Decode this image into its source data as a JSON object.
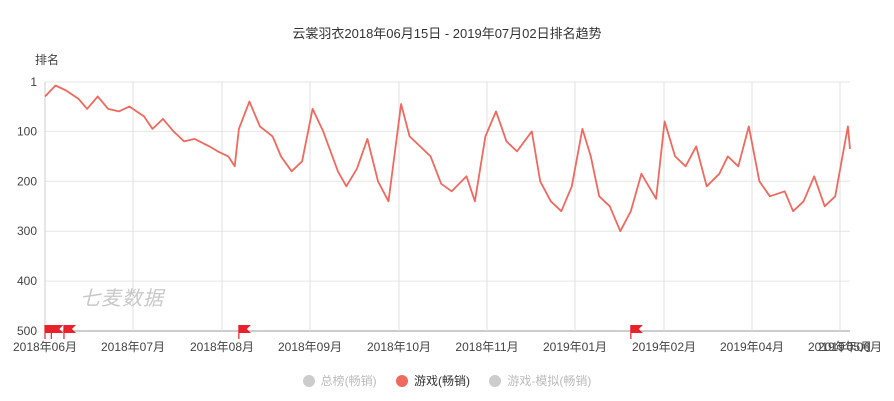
{
  "chart_data": {
    "type": "line",
    "title": "云裳羽衣2018年06月15日 - 2019年07月02日排名趋势",
    "ylabel": "排名",
    "ylim": [
      1,
      500
    ],
    "y_inverted": true,
    "y_ticks": [
      "1",
      "100",
      "200",
      "300",
      "400",
      "500"
    ],
    "x_ticks": [
      "2018年06月",
      "2018年07月",
      "2018年08月",
      "2018年09月",
      "2018年10月",
      "2018年11月",
      "2019年01月",
      "2019年02月",
      "2019年04月",
      "2019年05月",
      "2019年06月"
    ],
    "grid": true,
    "legend_position": "bottom",
    "series": [
      {
        "name": "游戏(畅销)",
        "color": "#f0695e",
        "x": [
          "2018-06-15",
          "2018-06-20",
          "2018-06-25",
          "2018-07-01",
          "2018-07-05",
          "2018-07-10",
          "2018-07-15",
          "2018-07-20",
          "2018-07-25",
          "2018-08-01",
          "2018-08-05",
          "2018-08-10",
          "2018-08-15",
          "2018-08-20",
          "2018-08-25",
          "2018-09-01",
          "2018-09-05",
          "2018-09-10",
          "2018-09-13",
          "2018-09-15",
          "2018-09-20",
          "2018-09-25",
          "2018-10-01",
          "2018-10-05",
          "2018-10-10",
          "2018-10-15",
          "2018-10-20",
          "2018-10-25",
          "2018-11-01",
          "2018-11-05",
          "2018-11-10",
          "2018-11-15",
          "2018-11-20",
          "2018-11-25",
          "2018-12-01",
          "2018-12-05",
          "2018-12-10",
          "2018-12-15",
          "2018-12-20",
          "2018-12-25",
          "2019-01-01",
          "2019-01-05",
          "2019-01-10",
          "2019-01-15",
          "2019-01-20",
          "2019-01-25",
          "2019-02-01",
          "2019-02-05",
          "2019-02-10",
          "2019-02-15",
          "2019-02-20",
          "2019-02-25",
          "2019-03-01",
          "2019-03-05",
          "2019-03-10",
          "2019-03-15",
          "2019-03-20",
          "2019-03-25",
          "2019-04-01",
          "2019-04-05",
          "2019-04-10",
          "2019-04-15",
          "2019-04-20",
          "2019-04-25",
          "2019-05-01",
          "2019-05-05",
          "2019-05-10",
          "2019-05-15",
          "2019-05-20",
          "2019-05-25",
          "2019-06-01",
          "2019-06-05",
          "2019-06-10",
          "2019-06-15",
          "2019-06-20",
          "2019-06-25",
          "2019-07-01",
          "2019-07-02"
        ],
        "values": [
          30,
          8,
          18,
          35,
          55,
          30,
          55,
          60,
          50,
          70,
          95,
          75,
          100,
          120,
          115,
          130,
          140,
          150,
          170,
          95,
          40,
          90,
          110,
          150,
          180,
          160,
          55,
          100,
          180,
          210,
          175,
          115,
          200,
          240,
          45,
          110,
          130,
          150,
          205,
          220,
          190,
          240,
          110,
          60,
          120,
          140,
          100,
          200,
          240,
          260,
          210,
          95,
          150,
          230,
          250,
          300,
          260,
          185,
          235,
          80,
          150,
          170,
          130,
          210,
          185,
          150,
          170,
          90,
          200,
          230,
          220,
          260,
          240,
          190,
          250,
          230,
          90,
          135
        ]
      }
    ],
    "other_legend_entries": [
      "总榜(畅销)",
      "游戏-模拟(畅销)"
    ],
    "flags": [
      "2018-06-15",
      "2018-06-18",
      "2018-06-24",
      "2018-09-15",
      "2019-03-20"
    ]
  },
  "legend": {
    "items": [
      {
        "label": "总榜(畅销)",
        "active": false
      },
      {
        "label": "游戏(畅销)",
        "active": true
      },
      {
        "label": "游戏-模拟(畅销)",
        "active": false
      }
    ]
  },
  "watermark": "七麦数据"
}
